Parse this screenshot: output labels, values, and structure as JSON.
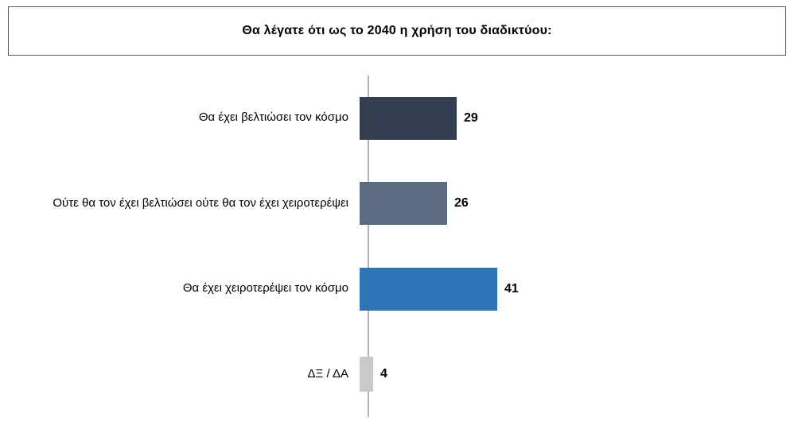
{
  "title": "Θα λέγατε ότι ως το 2040 η χρήση του διαδικτύου:",
  "chart_data": {
    "type": "bar",
    "orientation": "horizontal",
    "title": "Θα λέγατε ότι ως το 2040 η χρήση του διαδικτύου:",
    "categories": [
      "Θα έχει βελτιώσει τον κόσμο",
      "Ούτε θα τον έχει βελτιώσει ούτε θα τον έχει χειροτερέψει",
      "Θα έχει χειροτερέψει τον κόσμο",
      "ΔΞ / ΔΑ"
    ],
    "values": [
      29,
      26,
      41,
      4
    ],
    "value_labels": [
      "29",
      "26",
      "41",
      "4"
    ],
    "colors": [
      "#333f50",
      "#5b6b82",
      "#2e75b6",
      "#c9c9c9"
    ],
    "xlim": [
      0,
      100
    ],
    "grid": false,
    "legend": false,
    "axis_color": "#b3b3b3"
  }
}
